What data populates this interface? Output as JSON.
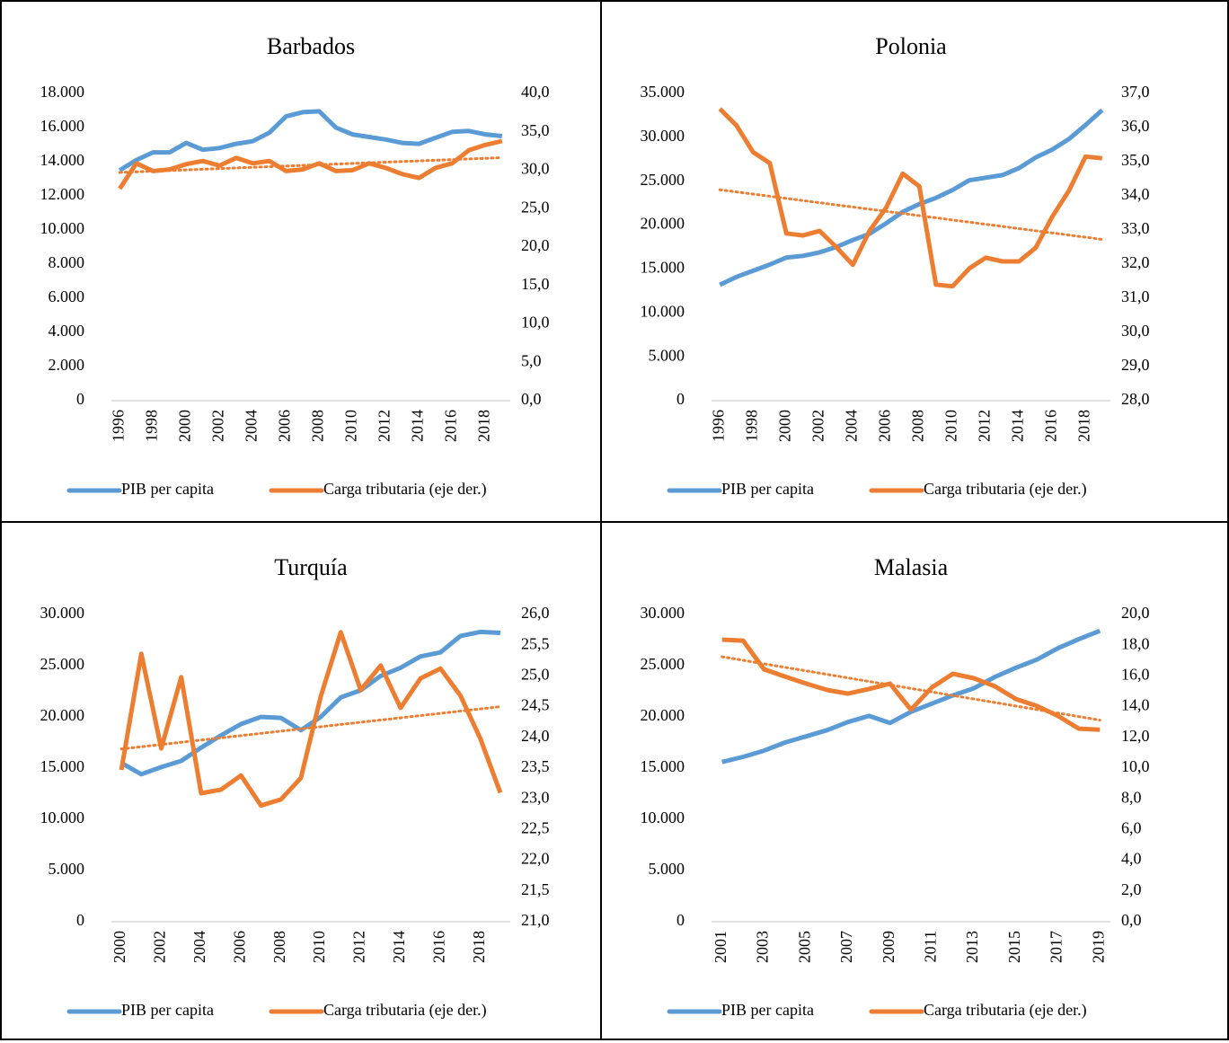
{
  "chart_data": [
    {
      "type": "line",
      "title": "Barbados",
      "categories": [
        "1996",
        null,
        "1998",
        null,
        "2000",
        null,
        "2002",
        null,
        "2004",
        null,
        "2006",
        null,
        "2008",
        null,
        "2010",
        null,
        "2012",
        null,
        "2014",
        null,
        "2016",
        null,
        "2018",
        null
      ],
      "series": [
        {
          "name": "PIB per capita",
          "color": "#5b9bd5",
          "values": [
            13500,
            14100,
            14550,
            14550,
            15100,
            14700,
            14800,
            15050,
            15200,
            15700,
            16650,
            16900,
            16950,
            16000,
            15600,
            15450,
            15300,
            15100,
            15050,
            15400,
            15750,
            15800,
            15600,
            15500
          ]
        },
        {
          "name": "Carga tributaria (eje der.)",
          "color": "#ed7d31",
          "axis": "y2",
          "trendline": "linear",
          "values": [
            27.6,
            30.9,
            29.9,
            30.1,
            30.8,
            31.2,
            30.6,
            31.6,
            30.9,
            31.2,
            29.9,
            30.1,
            30.9,
            29.9,
            30.0,
            30.9,
            30.3,
            29.5,
            29.0,
            30.3,
            30.9,
            32.6,
            33.3,
            33.8
          ]
        }
      ],
      "ylim": [
        0,
        18000
      ],
      "yticks": [
        0,
        {
          "value": 2000,
          "label": "2.000"
        },
        {
          "value": 4000,
          "label": "4.000"
        },
        {
          "value": 6000,
          "label": "6.000"
        },
        {
          "value": 8000,
          "label": "8.000"
        },
        {
          "value": 10000,
          "label": "10.000"
        },
        {
          "value": 12000,
          "label": "12.000"
        },
        {
          "value": 14000,
          "label": "14.000"
        },
        {
          "value": 16000,
          "label": "16.000"
        },
        {
          "value": 18000,
          "label": "18.000"
        }
      ],
      "y2lim": [
        0,
        40
      ],
      "y2ticks": [
        {
          "value": 0,
          "label": "0,0"
        },
        {
          "value": 5,
          "label": "5,0"
        },
        {
          "value": 10,
          "label": "10,0"
        },
        {
          "value": 15,
          "label": "15,0"
        },
        {
          "value": 20,
          "label": "20,0"
        },
        {
          "value": 25,
          "label": "25,0"
        },
        {
          "value": 30,
          "label": "30,0"
        },
        {
          "value": 35,
          "label": "35,0"
        },
        {
          "value": 40,
          "label": "40,0"
        }
      ],
      "legend": "bottom"
    },
    {
      "type": "line",
      "title": "Polonia",
      "categories": [
        "1996",
        null,
        "1998",
        null,
        "2000",
        null,
        "2002",
        null,
        "2004",
        null,
        "2006",
        null,
        "2008",
        null,
        "2010",
        null,
        "2012",
        null,
        "2014",
        null,
        "2016",
        null,
        "2018",
        null
      ],
      "series": [
        {
          "name": "PIB per capita",
          "color": "#5b9bd5",
          "values": [
            13200,
            14100,
            14800,
            15500,
            16300,
            16500,
            16900,
            17500,
            18300,
            19000,
            20200,
            21500,
            22400,
            23100,
            24000,
            25100,
            25400,
            25700,
            26500,
            27700,
            28600,
            29800,
            31400,
            33100
          ]
        },
        {
          "name": "Carga tributaria (eje der.)",
          "color": "#ed7d31",
          "axis": "y2",
          "trendline": "linear",
          "values": [
            36.55,
            36.06,
            35.28,
            34.96,
            32.9,
            32.84,
            32.97,
            32.5,
            31.98,
            32.97,
            33.65,
            34.65,
            34.28,
            31.4,
            31.35,
            31.87,
            32.19,
            32.08,
            32.08,
            32.48,
            33.39,
            34.15,
            35.15,
            35.1
          ]
        }
      ],
      "ylim": [
        0,
        35000
      ],
      "yticks": [
        0,
        {
          "value": 5000,
          "label": "5.000"
        },
        {
          "value": 10000,
          "label": "10.000"
        },
        {
          "value": 15000,
          "label": "15.000"
        },
        {
          "value": 20000,
          "label": "20.000"
        },
        {
          "value": 25000,
          "label": "25.000"
        },
        {
          "value": 30000,
          "label": "30.000"
        },
        {
          "value": 35000,
          "label": "35.000"
        }
      ],
      "y2lim": [
        28,
        37
      ],
      "y2ticks": [
        {
          "value": 28,
          "label": "28,0"
        },
        {
          "value": 29,
          "label": "29,0"
        },
        {
          "value": 30,
          "label": "30,0"
        },
        {
          "value": 31,
          "label": "31,0"
        },
        {
          "value": 32,
          "label": "32,0"
        },
        {
          "value": 33,
          "label": "33,0"
        },
        {
          "value": 34,
          "label": "34,0"
        },
        {
          "value": 35,
          "label": "35,0"
        },
        {
          "value": 36,
          "label": "36,0"
        },
        {
          "value": 37,
          "label": "37,0"
        }
      ],
      "legend": "bottom"
    },
    {
      "type": "line",
      "title": "Turquía",
      "categories": [
        "2000",
        null,
        "2002",
        null,
        "2004",
        null,
        "2006",
        null,
        "2008",
        null,
        "2010",
        null,
        "2012",
        null,
        "2014",
        null,
        "2016",
        null,
        "2018",
        null
      ],
      "series": [
        {
          "name": "PIB per capita",
          "color": "#5b9bd5",
          "values": [
            15500,
            14400,
            15100,
            15700,
            17000,
            18200,
            19300,
            20000,
            19900,
            18700,
            20000,
            21900,
            22600,
            24000,
            24800,
            25900,
            26300,
            27900,
            28300,
            28200
          ]
        },
        {
          "name": "Carga tributaria (eje der.)",
          "color": "#ed7d31",
          "axis": "y2",
          "trendline": "linear",
          "values": [
            23.47,
            25.36,
            23.82,
            24.98,
            23.09,
            23.15,
            23.38,
            22.89,
            22.99,
            23.34,
            24.67,
            25.71,
            24.77,
            25.17,
            24.48,
            24.96,
            25.12,
            24.68,
            23.98,
            23.1
          ]
        }
      ],
      "ylim": [
        0,
        30000
      ],
      "yticks": [
        0,
        {
          "value": 5000,
          "label": "5.000"
        },
        {
          "value": 10000,
          "label": "10.000"
        },
        {
          "value": 15000,
          "label": "15.000"
        },
        {
          "value": 20000,
          "label": "20.000"
        },
        {
          "value": 25000,
          "label": "25.000"
        },
        {
          "value": 30000,
          "label": "30.000"
        }
      ],
      "y2lim": [
        21,
        26
      ],
      "y2ticks": [
        {
          "value": 21,
          "label": "21,0"
        },
        {
          "value": 21.5,
          "label": "21,5"
        },
        {
          "value": 22,
          "label": "22,0"
        },
        {
          "value": 22.5,
          "label": "22,5"
        },
        {
          "value": 23,
          "label": "23,0"
        },
        {
          "value": 23.5,
          "label": "23,5"
        },
        {
          "value": 24,
          "label": "24,0"
        },
        {
          "value": 24.5,
          "label": "24,5"
        },
        {
          "value": 25,
          "label": "25,0"
        },
        {
          "value": 25.5,
          "label": "25,5"
        },
        {
          "value": 26,
          "label": "26,0"
        }
      ],
      "legend": "bottom"
    },
    {
      "type": "line",
      "title": "Malasia",
      "categories": [
        "2001",
        null,
        "2003",
        null,
        "2005",
        null,
        "2007",
        null,
        "2009",
        null,
        "2011",
        null,
        "2013",
        null,
        "2015",
        null,
        "2017",
        null,
        "2019"
      ],
      "series": [
        {
          "name": "PIB per capita",
          "color": "#5b9bd5",
          "values": [
            15600,
            16100,
            16700,
            17500,
            18100,
            18700,
            19500,
            20100,
            19400,
            20500,
            21300,
            22100,
            22800,
            23900,
            24800,
            25600,
            26700,
            27600,
            28400
          ]
        },
        {
          "name": "Carga tributaria (eje der.)",
          "color": "#ed7d31",
          "axis": "y2",
          "trendline": "linear",
          "values": [
            18.36,
            18.3,
            16.43,
            15.96,
            15.5,
            15.09,
            14.85,
            15.15,
            15.5,
            13.8,
            15.26,
            16.14,
            15.85,
            15.32,
            14.5,
            14.04,
            13.4,
            12.57,
            12.5
          ]
        }
      ],
      "ylim": [
        0,
        30000
      ],
      "yticks": [
        0,
        {
          "value": 5000,
          "label": "5.000"
        },
        {
          "value": 10000,
          "label": "10.000"
        },
        {
          "value": 15000,
          "label": "15.000"
        },
        {
          "value": 20000,
          "label": "20.000"
        },
        {
          "value": 25000,
          "label": "25.000"
        },
        {
          "value": 30000,
          "label": "30.000"
        }
      ],
      "y2lim": [
        0,
        20
      ],
      "y2ticks": [
        {
          "value": 0,
          "label": "0,0"
        },
        {
          "value": 2,
          "label": "2,0"
        },
        {
          "value": 4,
          "label": "4,0"
        },
        {
          "value": 6,
          "label": "6,0"
        },
        {
          "value": 8,
          "label": "8,0"
        },
        {
          "value": 10,
          "label": "10,0"
        },
        {
          "value": 12,
          "label": "12,0"
        },
        {
          "value": 14,
          "label": "14,0"
        },
        {
          "value": 16,
          "label": "16,0"
        },
        {
          "value": 18,
          "label": "18,0"
        },
        {
          "value": 20,
          "label": "20,0"
        }
      ],
      "legend": "bottom"
    }
  ]
}
